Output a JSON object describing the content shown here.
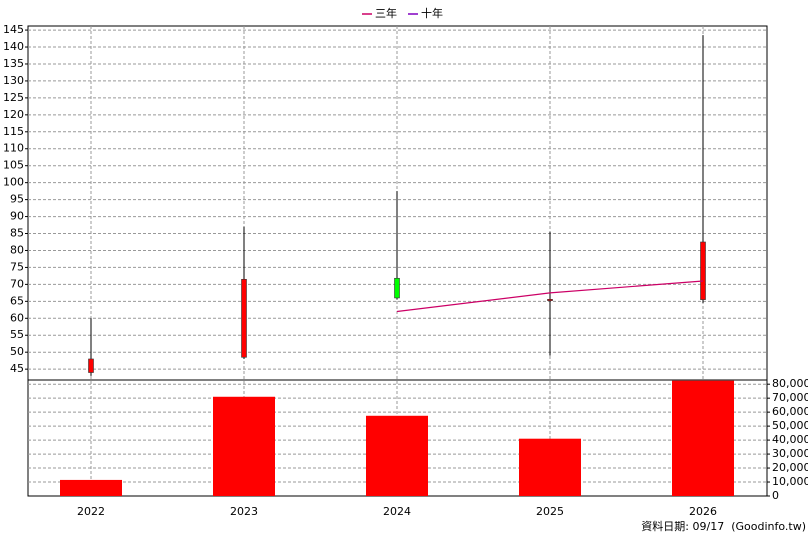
{
  "chart_data": {
    "type": "candlestick",
    "categories": [
      "2022",
      "2023",
      "2024",
      "2025",
      "2026"
    ],
    "open": [
      44,
      48.5,
      71.8,
      65.2,
      65.5
    ],
    "high": [
      60,
      87,
      97.5,
      85.5,
      143.5
    ],
    "low": [
      43,
      48,
      65.5,
      49,
      64.5
    ],
    "close": [
      48,
      71.5,
      66,
      65.6,
      82.5
    ],
    "up_color": "#ff0000",
    "down_color": "#00ff00",
    "series": [
      {
        "name": "三年",
        "color": "#cc0066",
        "values": [
          null,
          null,
          62,
          67.5,
          71
        ]
      },
      {
        "name": "十年",
        "color": "#8000c0",
        "values": [
          null,
          null,
          null,
          null,
          null
        ]
      }
    ],
    "ylim": [
      41.8,
      146.2
    ],
    "yticks": [
      45,
      50,
      55,
      60,
      65,
      70,
      75,
      80,
      85,
      90,
      95,
      100,
      105,
      110,
      115,
      120,
      125,
      130,
      135,
      140,
      145
    ],
    "volume": [
      11500,
      71000,
      57400,
      41000,
      82500
    ],
    "volume_color": "#ff0000",
    "volume_ylim": [
      0,
      83000
    ],
    "volume_ticks": [
      0,
      {
        "value": 10000,
        "label": "10,000"
      },
      {
        "value": 20000,
        "label": "20,000"
      },
      {
        "value": 30000,
        "label": "30,000"
      },
      {
        "value": 40000,
        "label": "40,000"
      },
      {
        "value": 50000,
        "label": "50,000"
      },
      {
        "value": 60000,
        "label": "60,000"
      },
      {
        "value": 70000,
        "label": "70,000"
      },
      {
        "value": 80000,
        "label": "80,000"
      }
    ],
    "grid": true,
    "legend": "top",
    "footer": "資料日期: 09/17  (Goodinfo.tw)"
  }
}
